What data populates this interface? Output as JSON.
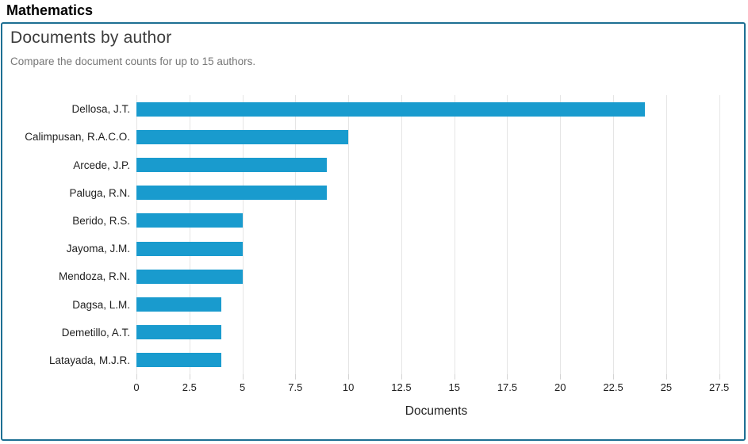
{
  "page": {
    "title": "Mathematics"
  },
  "panel": {
    "title": "Documents by author",
    "subtitle": "Compare the document counts for up to 15 authors."
  },
  "chart_data": {
    "type": "bar",
    "orientation": "horizontal",
    "title": "Documents by author",
    "categories": [
      "Dellosa, J.T.",
      "Calimpusan, R.A.C.O.",
      "Arcede, J.P.",
      "Paluga, R.N.",
      "Berido, R.S.",
      "Jayoma, J.M.",
      "Mendoza, R.N.",
      "Dagsa, L.M.",
      "Demetillo, A.T.",
      "Latayada, M.J.R."
    ],
    "values": [
      24,
      10,
      9,
      9,
      5,
      5,
      5,
      4,
      4,
      4
    ],
    "xlabel": "Documents",
    "ylabel": "",
    "xticks": [
      0,
      2.5,
      5,
      7.5,
      10,
      12.5,
      15,
      17.5,
      20,
      22.5,
      25,
      27.5
    ],
    "xlim": [
      0,
      28.3
    ],
    "grid": "vertical-only",
    "legend": "none"
  },
  "colors": {
    "bar": "#199bce",
    "panel_border": "#1d6f93",
    "gridline": "#e5e5e5",
    "tick_mark": "#d4d4d4",
    "heading_text": "#3c3c3c",
    "subtitle_text": "#767676",
    "label_text": "#1f1f1f",
    "page_title_text": "#000000"
  }
}
